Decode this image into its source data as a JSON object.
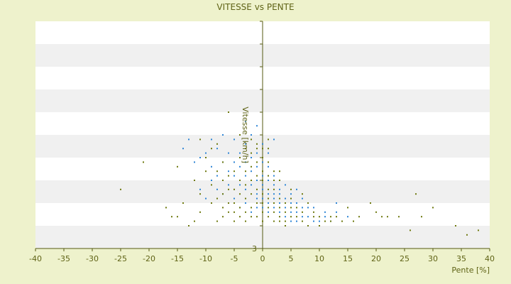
{
  "chart_data": {
    "type": "scatter",
    "title": "VITESSE vs PENTE",
    "xlabel": "Pente [%]",
    "ylabel": "Vitesse [km/h]",
    "xlim": [
      -40,
      40
    ],
    "ylim": [
      3,
      53
    ],
    "x_ticks": [
      -40,
      -35,
      -30,
      -25,
      -20,
      -15,
      -10,
      -5,
      0,
      5,
      10,
      15,
      20,
      25,
      30,
      35,
      40
    ],
    "y_ticks": [
      3,
      8,
      13,
      18,
      23,
      28,
      33,
      38,
      43,
      48,
      53
    ],
    "y_tick_labels": [
      "3",
      "",
      "",
      "",
      "",
      "",
      "",
      "",
      "",
      "",
      ""
    ],
    "grid": "horizontal bands",
    "colors": {
      "page_background": "#eef2cc",
      "band_white": "#ffffff",
      "band_grey": "#f0f0f0",
      "axis": "#555a12",
      "series_blue": "#2f86d6",
      "series_olive": "#6f7a10"
    },
    "series": [
      {
        "color": "#2f86d6",
        "points": [
          [
            -14,
            25
          ],
          [
            -13,
            27
          ],
          [
            -12,
            22
          ],
          [
            -11,
            23
          ],
          [
            -10,
            24
          ],
          [
            -9,
            21
          ],
          [
            -9,
            27
          ],
          [
            -8,
            19
          ],
          [
            -8,
            25
          ],
          [
            -7,
            22
          ],
          [
            -7,
            28
          ],
          [
            -6,
            20
          ],
          [
            -6,
            24
          ],
          [
            -6,
            17
          ],
          [
            -5,
            22
          ],
          [
            -5,
            19
          ],
          [
            -5,
            27
          ],
          [
            -4,
            17
          ],
          [
            -4,
            21
          ],
          [
            -4,
            24
          ],
          [
            -3,
            19
          ],
          [
            -3,
            22
          ],
          [
            -3,
            26
          ],
          [
            -3,
            31
          ],
          [
            -2,
            17
          ],
          [
            -2,
            20
          ],
          [
            -2,
            23
          ],
          [
            -2,
            28
          ],
          [
            -1,
            15
          ],
          [
            -1,
            18
          ],
          [
            -1,
            21
          ],
          [
            -1,
            24
          ],
          [
            -1,
            30
          ],
          [
            0,
            16
          ],
          [
            0,
            19
          ],
          [
            0,
            22
          ],
          [
            0,
            26
          ],
          [
            0,
            17
          ],
          [
            1,
            15
          ],
          [
            1,
            18
          ],
          [
            1,
            21
          ],
          [
            1,
            24
          ],
          [
            2,
            14
          ],
          [
            2,
            17
          ],
          [
            2,
            19
          ],
          [
            2,
            27
          ],
          [
            3,
            13
          ],
          [
            3,
            15
          ],
          [
            3,
            18
          ],
          [
            4,
            12
          ],
          [
            4,
            14
          ],
          [
            4,
            17
          ],
          [
            5,
            11
          ],
          [
            5,
            13
          ],
          [
            5,
            15
          ],
          [
            6,
            11
          ],
          [
            6,
            13
          ],
          [
            7,
            10
          ],
          [
            7,
            12
          ],
          [
            8,
            10
          ],
          [
            8,
            12
          ],
          [
            9,
            9
          ],
          [
            10,
            9
          ],
          [
            11,
            11
          ],
          [
            12,
            9
          ],
          [
            13,
            11
          ],
          [
            13,
            13
          ],
          [
            -11,
            16
          ],
          [
            -9,
            18
          ],
          [
            -7,
            15
          ],
          [
            -6,
            13
          ],
          [
            -5,
            14
          ],
          [
            -4,
            12
          ],
          [
            -3,
            13
          ],
          [
            -2,
            11
          ],
          [
            -1,
            12
          ],
          [
            0,
            12
          ],
          [
            1,
            13
          ],
          [
            1,
            11
          ],
          [
            2,
            12
          ],
          [
            3,
            11
          ],
          [
            4,
            10
          ],
          [
            5,
            9
          ],
          [
            6,
            9
          ],
          [
            9,
            12
          ],
          [
            11,
            10
          ],
          [
            15,
            10
          ],
          [
            -3,
            16
          ],
          [
            -1,
            14
          ],
          [
            0,
            14
          ],
          [
            2,
            15
          ],
          [
            3,
            16
          ],
          [
            -8,
            16
          ],
          [
            -10,
            14
          ],
          [
            6,
            16
          ],
          [
            7,
            14
          ]
        ]
      },
      {
        "color": "#6f7a10",
        "points": [
          [
            -25,
            16
          ],
          [
            -21,
            22
          ],
          [
            -17,
            12
          ],
          [
            -15,
            10
          ],
          [
            -15,
            21
          ],
          [
            -14,
            13
          ],
          [
            -12,
            18
          ],
          [
            -12,
            9
          ],
          [
            -11,
            11
          ],
          [
            -11,
            15
          ],
          [
            -11,
            27
          ],
          [
            -10,
            23
          ],
          [
            -9,
            17
          ],
          [
            -9,
            13
          ],
          [
            -8,
            9
          ],
          [
            -8,
            14
          ],
          [
            -8,
            20
          ],
          [
            -8,
            26
          ],
          [
            -7,
            10
          ],
          [
            -7,
            12
          ],
          [
            -7,
            15
          ],
          [
            -7,
            18
          ],
          [
            -7,
            22
          ],
          [
            -6,
            11
          ],
          [
            -6,
            13
          ],
          [
            -6,
            16
          ],
          [
            -6,
            19
          ],
          [
            -6,
            33
          ],
          [
            -5,
            9
          ],
          [
            -5,
            11
          ],
          [
            -5,
            13
          ],
          [
            -5,
            16
          ],
          [
            -5,
            20
          ],
          [
            -4,
            10
          ],
          [
            -4,
            12
          ],
          [
            -4,
            15
          ],
          [
            -4,
            18
          ],
          [
            -4,
            23
          ],
          [
            -3,
            9
          ],
          [
            -3,
            11
          ],
          [
            -3,
            14
          ],
          [
            -3,
            17
          ],
          [
            -3,
            20
          ],
          [
            -3,
            25
          ],
          [
            -2,
            10
          ],
          [
            -2,
            12
          ],
          [
            -2,
            15
          ],
          [
            -2,
            18
          ],
          [
            -2,
            21
          ],
          [
            -2,
            24
          ],
          [
            -1,
            10
          ],
          [
            -1,
            13
          ],
          [
            -1,
            16
          ],
          [
            -1,
            19
          ],
          [
            -1,
            22
          ],
          [
            -1,
            26
          ],
          [
            0,
            9
          ],
          [
            0,
            11
          ],
          [
            0,
            13
          ],
          [
            0,
            15
          ],
          [
            0,
            18
          ],
          [
            0,
            20
          ],
          [
            0,
            23
          ],
          [
            1,
            10
          ],
          [
            1,
            12
          ],
          [
            1,
            14
          ],
          [
            1,
            16
          ],
          [
            1,
            19
          ],
          [
            1,
            22
          ],
          [
            2,
            9
          ],
          [
            2,
            11
          ],
          [
            2,
            13
          ],
          [
            2,
            16
          ],
          [
            2,
            18
          ],
          [
            3,
            9
          ],
          [
            3,
            10
          ],
          [
            3,
            12
          ],
          [
            3,
            14
          ],
          [
            4,
            9
          ],
          [
            4,
            11
          ],
          [
            4,
            13
          ],
          [
            5,
            10
          ],
          [
            5,
            12
          ],
          [
            5,
            14
          ],
          [
            6,
            10
          ],
          [
            6,
            12
          ],
          [
            7,
            9
          ],
          [
            7,
            11
          ],
          [
            8,
            8
          ],
          [
            9,
            10
          ],
          [
            9,
            11
          ],
          [
            10,
            8
          ],
          [
            10,
            10
          ],
          [
            11,
            9
          ],
          [
            12,
            9
          ],
          [
            13,
            10
          ],
          [
            14,
            9
          ],
          [
            15,
            12
          ],
          [
            16,
            9
          ],
          [
            17,
            10
          ],
          [
            19,
            13
          ],
          [
            20,
            11
          ],
          [
            21,
            10
          ],
          [
            22,
            10
          ],
          [
            24,
            10
          ],
          [
            26,
            7
          ],
          [
            27,
            15
          ],
          [
            28,
            10
          ],
          [
            30,
            12
          ],
          [
            34,
            8
          ],
          [
            36,
            6
          ],
          [
            38,
            7
          ],
          [
            -16,
            10
          ],
          [
            -13,
            8
          ],
          [
            -10,
            20
          ],
          [
            -9,
            25
          ],
          [
            -4,
            28
          ],
          [
            1,
            27
          ],
          [
            3,
            18
          ],
          [
            5,
            16
          ],
          [
            7,
            15
          ],
          [
            12,
            10
          ],
          [
            2,
            20
          ],
          [
            -2,
            27
          ],
          [
            0,
            25
          ],
          [
            -1,
            25
          ],
          [
            1,
            25
          ],
          [
            3,
            20
          ],
          [
            4,
            8
          ],
          [
            8,
            13
          ]
        ]
      }
    ]
  }
}
